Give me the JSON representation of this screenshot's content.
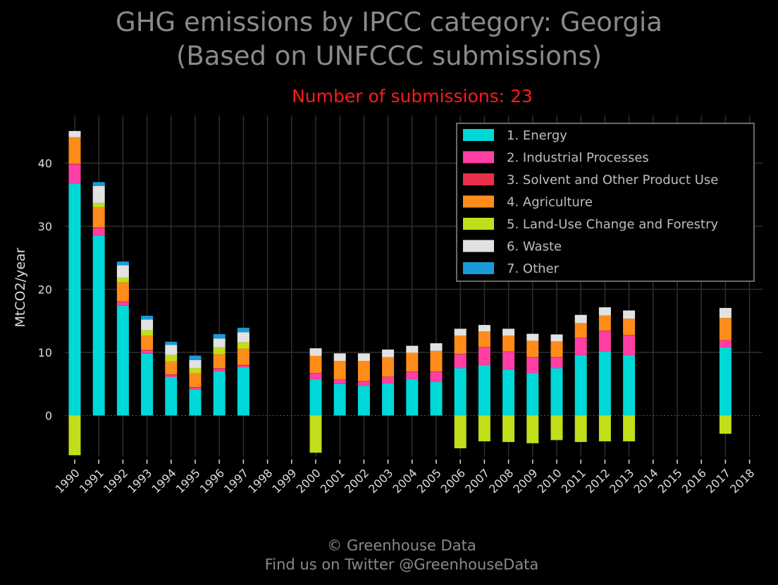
{
  "title_line1": "GHG emissions by IPCC category: Georgia",
  "title_line2": "(Based on UNFCCC submissions)",
  "subtitle": "Number of submissions: 23",
  "footer_line1": "© Greenhouse Data",
  "footer_line2": "Find us on Twitter @GreenhouseData",
  "chart_data": {
    "type": "bar",
    "stacked": true,
    "ylabel": "MtCO2/year",
    "ylim": [
      -6.5,
      47
    ],
    "yticks": [
      0,
      10,
      20,
      30,
      40
    ],
    "grid": true,
    "legend_position": "top-right",
    "categories": [
      "1990",
      "1991",
      "1992",
      "1993",
      "1994",
      "1995",
      "1996",
      "1997",
      "1998",
      "1999",
      "2000",
      "2001",
      "2002",
      "2003",
      "2004",
      "2005",
      "2006",
      "2007",
      "2008",
      "2009",
      "2010",
      "2011",
      "2012",
      "2013",
      "2014",
      "2015",
      "2016",
      "2017",
      "2018"
    ],
    "series": [
      {
        "name": "1. Energy",
        "color": "#00d8d8",
        "values": [
          36.8,
          28.5,
          17.4,
          9.8,
          6.1,
          4.1,
          7.0,
          7.6,
          null,
          null,
          5.7,
          5.0,
          4.7,
          5.1,
          5.7,
          5.3,
          7.5,
          8.0,
          7.3,
          6.7,
          7.5,
          9.5,
          10.2,
          9.5,
          null,
          null,
          null,
          10.8,
          null
        ]
      },
      {
        "name": "2. Industrial Processes",
        "color": "#ff3fa4",
        "values": [
          3.0,
          1.2,
          0.6,
          0.5,
          0.3,
          0.3,
          0.4,
          0.3,
          null,
          null,
          1.0,
          0.7,
          0.7,
          1.0,
          1.2,
          1.6,
          2.2,
          2.8,
          2.8,
          2.5,
          1.7,
          2.8,
          3.2,
          3.2,
          null,
          null,
          null,
          1.1,
          null
        ]
      },
      {
        "name": "3. Solvent and Other Product Use",
        "color": "#e8304a",
        "values": [
          0.1,
          0.1,
          0.1,
          0.1,
          0.1,
          0.1,
          0.1,
          0.1,
          null,
          null,
          0.05,
          0.05,
          0.05,
          0.05,
          0.05,
          0.05,
          0.05,
          0.05,
          0.05,
          0.05,
          0.05,
          0.05,
          0.05,
          0.05,
          null,
          null,
          null,
          0.05,
          null
        ]
      },
      {
        "name": "4. Agriculture",
        "color": "#ff8c1a",
        "values": [
          4.2,
          3.2,
          3.0,
          2.2,
          2.1,
          2.2,
          2.2,
          2.6,
          null,
          null,
          2.7,
          2.9,
          3.2,
          3.1,
          3.0,
          3.3,
          2.9,
          2.5,
          2.5,
          2.6,
          2.5,
          2.3,
          2.4,
          2.6,
          null,
          null,
          null,
          3.5,
          null
        ]
      },
      {
        "name": "5. Land-Use Change and Forestry",
        "color": "#c2dd1a",
        "values": [
          -6.3,
          0.7,
          0.8,
          0.9,
          1.0,
          0.8,
          1.1,
          1.0,
          null,
          null,
          -5.9,
          0,
          0,
          0,
          0,
          0,
          -5.2,
          -4.1,
          -4.2,
          -4.4,
          -3.9,
          -4.2,
          -4.1,
          -4.1,
          null,
          null,
          null,
          -2.9,
          null
        ]
      },
      {
        "name": "6. Waste",
        "color": "#e2e2e2",
        "values": [
          1.0,
          2.7,
          1.9,
          1.7,
          1.6,
          1.3,
          1.4,
          1.6,
          null,
          null,
          1.2,
          1.2,
          1.2,
          1.2,
          1.1,
          1.2,
          1.1,
          1.0,
          1.1,
          1.1,
          1.1,
          1.3,
          1.3,
          1.3,
          null,
          null,
          null,
          1.6,
          null
        ]
      },
      {
        "name": "7. Other",
        "color": "#1a9ad6",
        "values": [
          0,
          0.6,
          0.6,
          0.6,
          0.5,
          0.7,
          0.7,
          0.7,
          null,
          null,
          0,
          0,
          0,
          0,
          0,
          0,
          0,
          0,
          0,
          0,
          0,
          0,
          0,
          0,
          null,
          null,
          null,
          0,
          null
        ]
      }
    ]
  }
}
